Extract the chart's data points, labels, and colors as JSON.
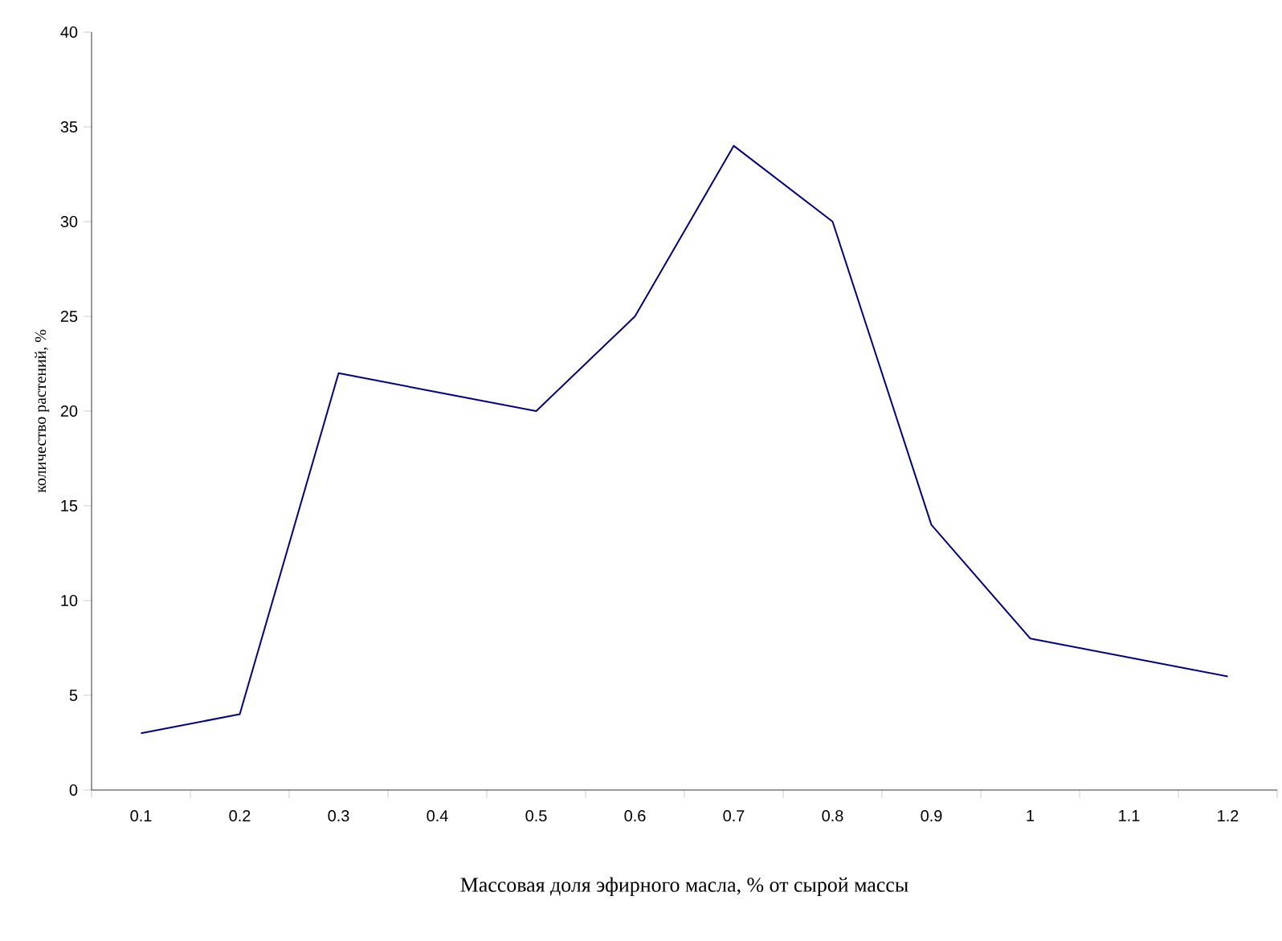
{
  "chart_data": {
    "type": "line",
    "xlabel": "Массовая доля эфирного масла, % от сырой массы",
    "ylabel": "количество растений, %",
    "categories": [
      "0.1",
      "0.2",
      "0.3",
      "0.4",
      "0.5",
      "0.6",
      "0.7",
      "0.8",
      "0.9",
      "1",
      "1.1",
      "1.2"
    ],
    "values": [
      3,
      4,
      22,
      21,
      20,
      25,
      34,
      30,
      14,
      8,
      7,
      6
    ],
    "color": "#000080",
    "ylim": [
      0,
      40
    ],
    "yticks": [
      0,
      5,
      10,
      15,
      20,
      25,
      30,
      35,
      40
    ],
    "grid": false,
    "marker": "none",
    "line_style": "solid"
  }
}
